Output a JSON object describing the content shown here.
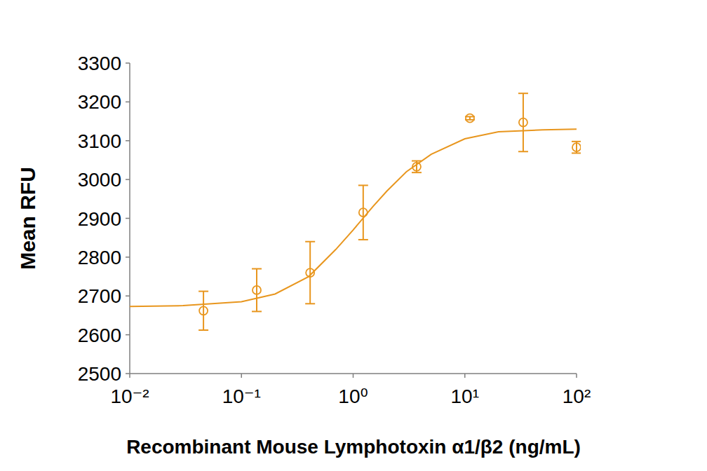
{
  "chart_data": {
    "type": "scatter",
    "log": "x",
    "grid": false,
    "x_label": "Recombinant Mouse Lymphotoxin α1/β2 (ng/mL)",
    "y_label": "Mean RFU",
    "xlim": [
      0.01,
      100
    ],
    "xticks": [
      {
        "value": 0.01,
        "label": "10⁻²"
      },
      {
        "value": 0.1,
        "label": "10⁻¹"
      },
      {
        "value": 1,
        "label": "10⁰"
      },
      {
        "value": 10,
        "label": "10¹"
      },
      {
        "value": 100,
        "label": "10²"
      }
    ],
    "ylim": [
      2500,
      3300
    ],
    "yticks": [
      2500,
      2600,
      2700,
      2800,
      2900,
      3000,
      3100,
      3200,
      3300
    ],
    "series": [
      {
        "type": "scatter",
        "marker": "circle",
        "color": "#e8961e",
        "x": [
          0.0457,
          0.137,
          0.412,
          1.23,
          3.7,
          11.1,
          33.3,
          100
        ],
        "values": [
          2662,
          2715,
          2760,
          2915,
          3033,
          3158,
          3147,
          3083
        ],
        "errors": [
          50,
          55,
          80,
          70,
          15,
          4,
          75,
          15
        ]
      },
      {
        "type": "line",
        "line_style": "solid",
        "color": "#e8961e",
        "x": [
          0.01,
          0.03,
          0.1,
          0.2,
          0.4,
          0.7,
          1,
          1.5,
          2,
          3,
          5,
          10,
          20,
          50,
          100
        ],
        "values": [
          2673,
          2675,
          2685,
          2705,
          2750,
          2820,
          2870,
          2930,
          2970,
          3020,
          3065,
          3105,
          3123,
          3128,
          3130
        ]
      }
    ]
  }
}
